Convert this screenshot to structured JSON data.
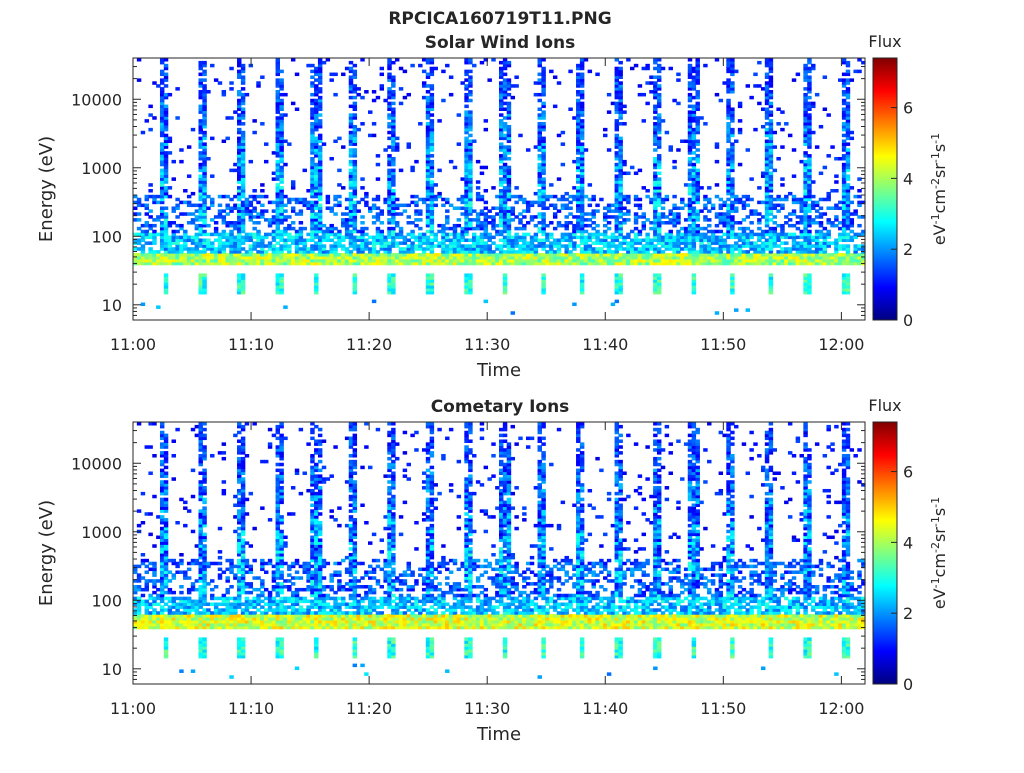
{
  "figure_title": "RPCICA160719T11.PNG",
  "colors": {
    "jet": [
      "#000080",
      "#0000ff",
      "#0080ff",
      "#00ffff",
      "#80ff80",
      "#ffff00",
      "#ff8000",
      "#ff0000",
      "#800000"
    ]
  },
  "chart_data": [
    {
      "type": "heatmap",
      "title": "Solar Wind Ions",
      "xlabel": "Time",
      "ylabel": "Energy (eV)",
      "xlim": [
        "11:00",
        "12:02"
      ],
      "ylim": [
        6,
        40000
      ],
      "y_scale": "log",
      "x_ticks": [
        "11:00",
        "11:10",
        "11:20",
        "11:30",
        "11:40",
        "11:50",
        "12:00"
      ],
      "y_ticks": [
        "10",
        "100",
        "1000",
        "10000"
      ],
      "colorbar": {
        "title": "Flux",
        "label": "eV-1cm-2sr-1s-1",
        "ticks": [
          "0",
          "2",
          "4",
          "6"
        ],
        "range": [
          0,
          7.4
        ]
      },
      "sweep_period_min": 3.2,
      "sweep_start_min": 2.5,
      "band_energy_ev": [
        38,
        55
      ],
      "low_energy_pixels_ev": [
        14,
        30
      ]
    },
    {
      "type": "heatmap",
      "title": "Cometary Ions",
      "xlabel": "Time",
      "ylabel": "Energy (eV)",
      "xlim": [
        "11:00",
        "12:02"
      ],
      "ylim": [
        6,
        40000
      ],
      "y_scale": "log",
      "x_ticks": [
        "11:00",
        "11:10",
        "11:20",
        "11:30",
        "11:40",
        "11:50",
        "12:00"
      ],
      "y_ticks": [
        "10",
        "100",
        "1000",
        "10000"
      ],
      "colorbar": {
        "title": "Flux",
        "label": "eV-1cm-2sr-1s-1",
        "ticks": [
          "0",
          "2",
          "4",
          "6"
        ],
        "range": [
          0,
          7.4
        ]
      },
      "sweep_period_min": 3.2,
      "sweep_start_min": 2.5,
      "band_energy_ev": [
        38,
        60
      ],
      "low_energy_pixels_ev": [
        14,
        30
      ]
    }
  ]
}
